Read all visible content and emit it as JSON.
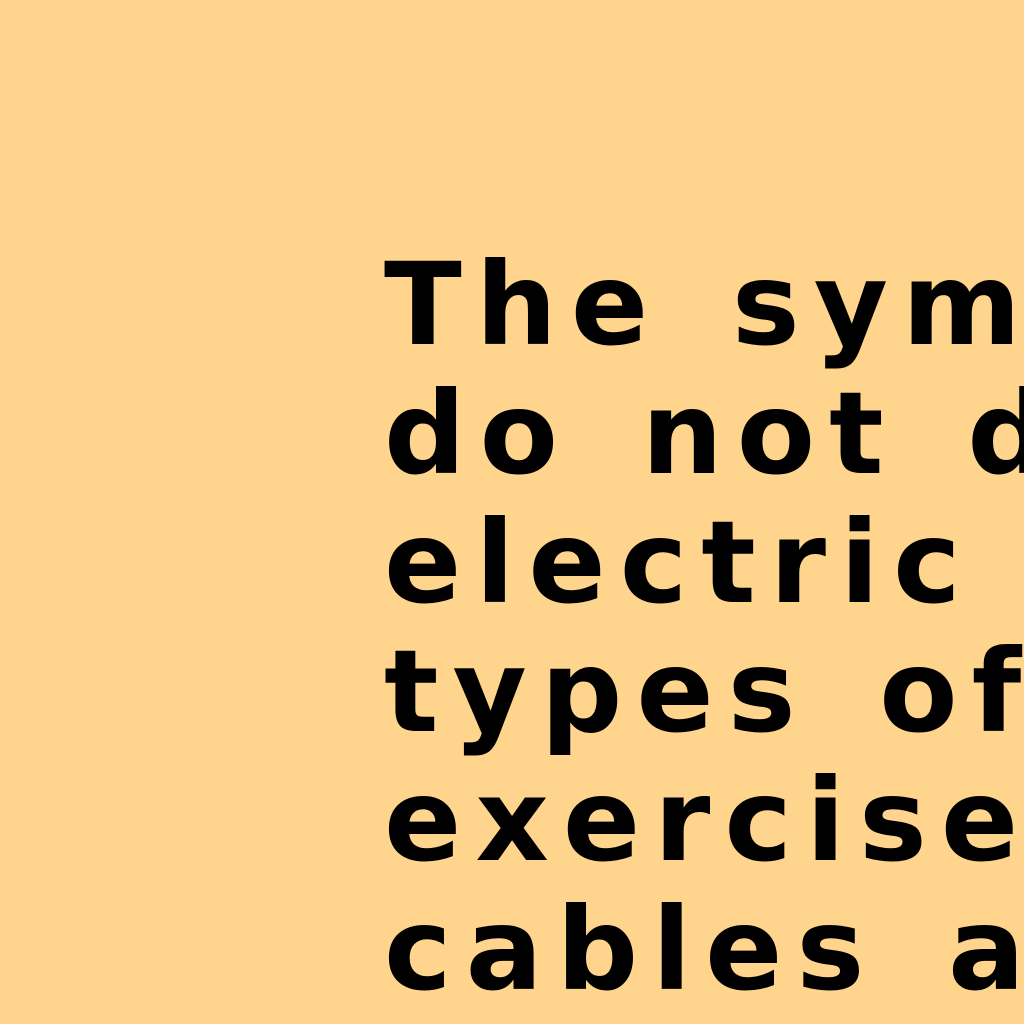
{
  "background_color": "#FFD58E",
  "text_color": "#000000",
  "lines": [
    "The symb",
    "do not dif",
    "electric po",
    "types of u",
    "exercise c",
    "cables an"
  ]
}
